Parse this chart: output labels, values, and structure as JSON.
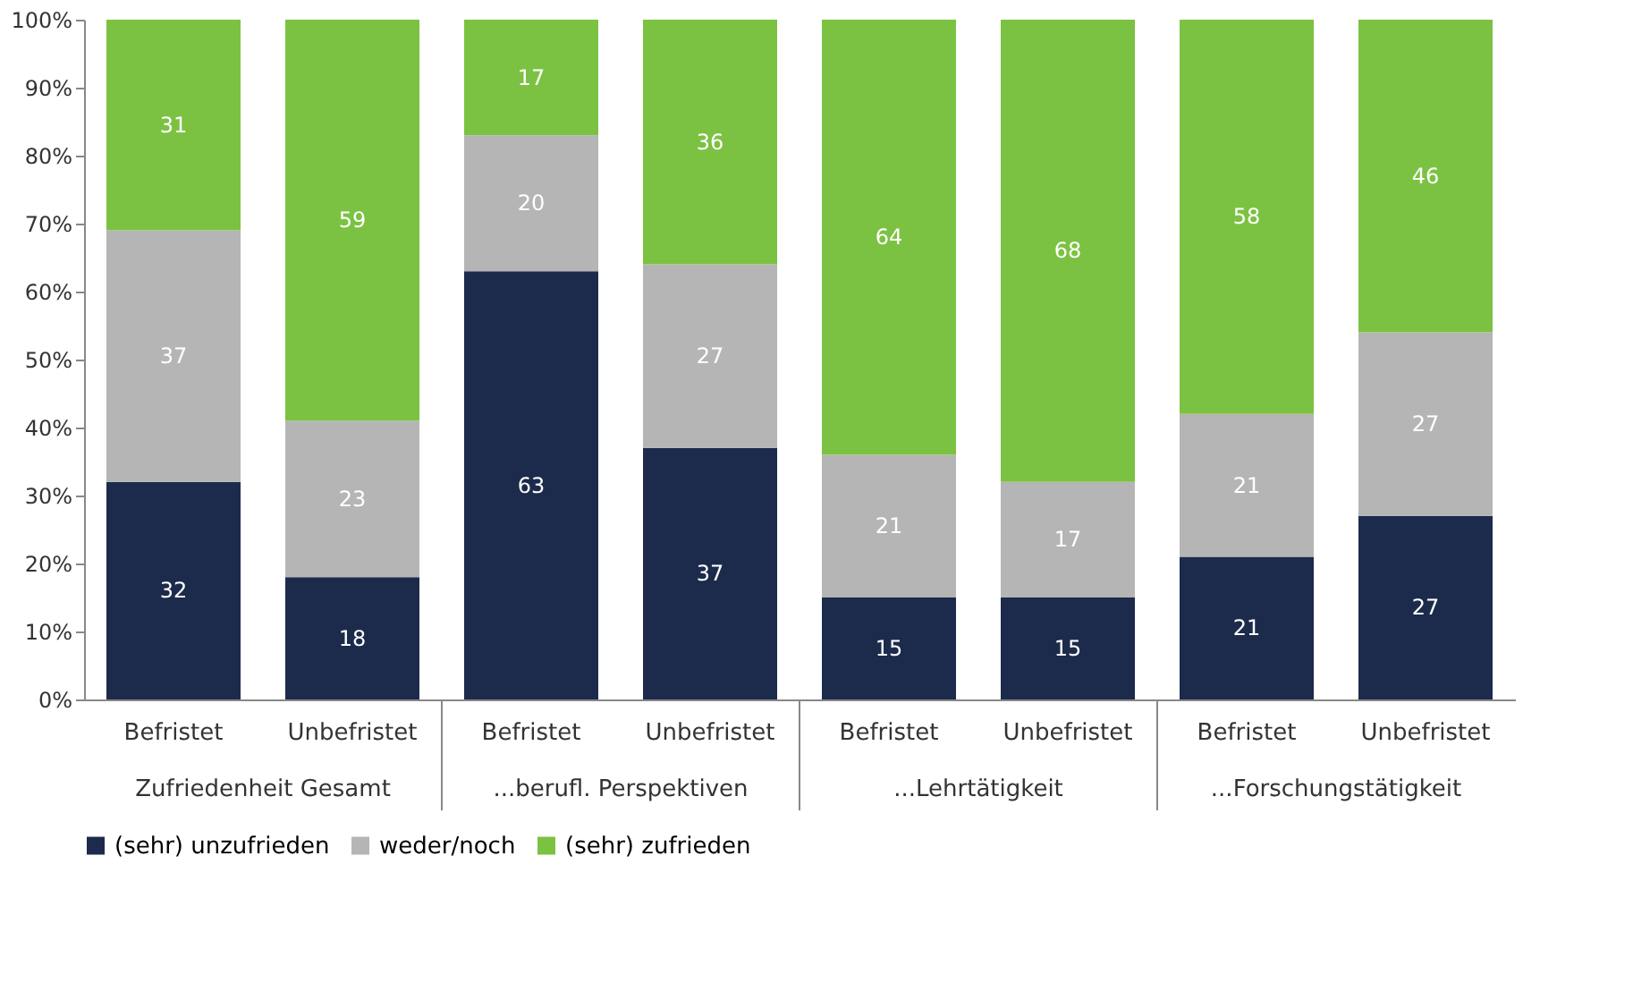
{
  "chart_data": {
    "type": "bar",
    "stacked": true,
    "categories": [
      "Befristet",
      "Unbefristet",
      "Befristet",
      "Unbefristet",
      "Befristet",
      "Unbefristet",
      "Befristet",
      "Unbefristet"
    ],
    "series": [
      {
        "name": "(sehr) unzufrieden",
        "color": "#1c2b4b",
        "values": [
          32,
          18,
          63,
          37,
          15,
          15,
          21,
          27
        ]
      },
      {
        "name": "weder/noch",
        "color": "#b5b5b5",
        "values": [
          37,
          23,
          20,
          27,
          21,
          17,
          21,
          27
        ]
      },
      {
        "name": "(sehr) zufrieden",
        "color": "#7cc242",
        "values": [
          31,
          59,
          17,
          36,
          64,
          68,
          58,
          46
        ]
      }
    ],
    "annotations": [
      "Zufriedenheit Gesamt",
      "...berufl. Perspektiven",
      "...Lehrtätigkeit",
      "...Forschungstätigkeit"
    ],
    "ylim": [
      0,
      100
    ],
    "yticks": [
      {
        "value": 0,
        "label": "0%"
      },
      {
        "value": 10,
        "label": "10%"
      },
      {
        "value": 20,
        "label": "20%"
      },
      {
        "value": 30,
        "label": "30%"
      },
      {
        "value": 40,
        "label": "40%"
      },
      {
        "value": 50,
        "label": "50%"
      },
      {
        "value": 60,
        "label": "60%"
      },
      {
        "value": 70,
        "label": "70%"
      },
      {
        "value": 80,
        "label": "80%"
      },
      {
        "value": 90,
        "label": "90%"
      },
      {
        "value": 100,
        "label": "100%"
      }
    ],
    "grid": false,
    "legend": "bottom",
    "data_labels": true
  }
}
